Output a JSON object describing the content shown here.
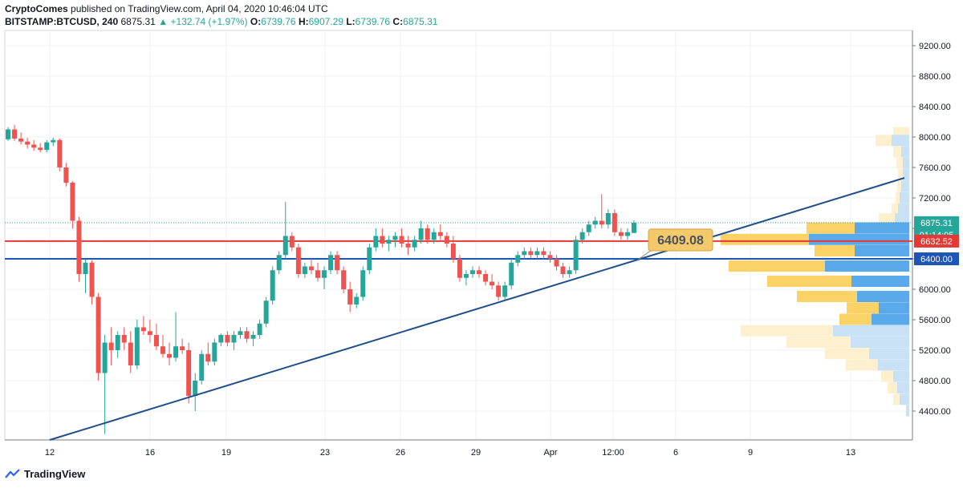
{
  "header": {
    "author": "CryptoComes",
    "published_text": "published on TradingView.com, April 04, 2020 10:46:04 UTC"
  },
  "symbol_row": {
    "symbol": "BITSTAMP:BTCUSD, 240",
    "last": "6875.31",
    "change": "+132.74 (+1.97%)",
    "o_label": "O:",
    "o": "6739.76",
    "h_label": "H:",
    "h": "6907.29",
    "l_label": "L:",
    "l": "6739.76",
    "c_label": "C:",
    "c": "6875.31"
  },
  "footer": {
    "brand": "TradingView"
  },
  "chart_data": {
    "type": "candlestick",
    "y_axis_ticks": [
      "9200.00",
      "8800.00",
      "8400.00",
      "8000.00",
      "7600.00",
      "7200.00",
      "6800.00",
      "6400.00",
      "6000.00",
      "5600.00",
      "5200.00",
      "4800.00",
      "4400.00"
    ],
    "y_axis_values": [
      9200,
      8800,
      8400,
      8000,
      7600,
      7200,
      6800,
      6400,
      6000,
      5600,
      5200,
      4800,
      4400
    ],
    "ylim": [
      4100,
      9400
    ],
    "x_axis_labels": [
      "12",
      "16",
      "19",
      "23",
      "26",
      "29",
      "Apr",
      "12:00",
      "6",
      "9",
      "13"
    ],
    "horizontal_lines": [
      {
        "value": 6632.52,
        "color": "#e53935",
        "label": "6632.52"
      },
      {
        "value": 6400.0,
        "color": "#1e56b8",
        "label": "6400.00"
      }
    ],
    "last_price": {
      "value": 6875.31,
      "label": "6875.31",
      "countdown": "01:14:05"
    },
    "trendline_label": "6409.08",
    "colors": {
      "up": "#26a69a",
      "down": "#ef5350",
      "trend": "#1e4f8c"
    },
    "candles": [
      [
        7970,
        8130,
        7950,
        8100
      ],
      [
        8100,
        8160,
        7950,
        7980
      ],
      [
        7980,
        8060,
        7900,
        7940
      ],
      [
        7940,
        7990,
        7850,
        7900
      ],
      [
        7900,
        7960,
        7820,
        7860
      ],
      [
        7860,
        7920,
        7800,
        7830
      ],
      [
        7830,
        7960,
        7800,
        7930
      ],
      [
        7930,
        7990,
        7880,
        7960
      ],
      [
        7960,
        7980,
        7550,
        7600
      ],
      [
        7600,
        7660,
        7350,
        7400
      ],
      [
        7400,
        7420,
        6800,
        6900
      ],
      [
        6900,
        6950,
        6100,
        6200
      ],
      [
        6200,
        6400,
        5950,
        6350
      ],
      [
        6350,
        6380,
        5800,
        5900
      ],
      [
        5900,
        5950,
        4800,
        4900
      ],
      [
        4900,
        5400,
        4100,
        5300
      ],
      [
        5300,
        5500,
        5000,
        5200
      ],
      [
        5200,
        5450,
        5100,
        5400
      ],
      [
        5400,
        5500,
        5200,
        5300
      ],
      [
        5300,
        5450,
        4900,
        5000
      ],
      [
        5000,
        5600,
        4950,
        5500
      ],
      [
        5500,
        5650,
        5400,
        5450
      ],
      [
        5450,
        5600,
        5300,
        5400
      ],
      [
        5400,
        5550,
        5200,
        5250
      ],
      [
        5250,
        5400,
        5100,
        5150
      ],
      [
        5150,
        5300,
        5000,
        5100
      ],
      [
        5100,
        5700,
        5050,
        5250
      ],
      [
        5250,
        5350,
        5150,
        5200
      ],
      [
        5200,
        5300,
        4500,
        4600
      ],
      [
        4600,
        4900,
        4400,
        4800
      ],
      [
        4800,
        5200,
        4750,
        5150
      ],
      [
        5150,
        5300,
        5000,
        5050
      ],
      [
        5050,
        5350,
        5000,
        5300
      ],
      [
        5300,
        5420,
        5250,
        5400
      ],
      [
        5400,
        5450,
        5250,
        5300
      ],
      [
        5300,
        5450,
        5200,
        5400
      ],
      [
        5400,
        5500,
        5350,
        5450
      ],
      [
        5450,
        5500,
        5300,
        5350
      ],
      [
        5350,
        5450,
        5250,
        5400
      ],
      [
        5400,
        5600,
        5350,
        5550
      ],
      [
        5550,
        5900,
        5500,
        5850
      ],
      [
        5850,
        6300,
        5800,
        6250
      ],
      [
        6250,
        6500,
        6200,
        6450
      ],
      [
        6450,
        7150,
        6400,
        6700
      ],
      [
        6700,
        6750,
        6500,
        6550
      ],
      [
        6550,
        6600,
        6150,
        6200
      ],
      [
        6200,
        6350,
        6150,
        6300
      ],
      [
        6300,
        6400,
        6200,
        6250
      ],
      [
        6250,
        6350,
        6100,
        6150
      ],
      [
        6150,
        6300,
        6000,
        6250
      ],
      [
        6250,
        6500,
        6200,
        6450
      ],
      [
        6450,
        6500,
        6200,
        6250
      ],
      [
        6250,
        6300,
        5950,
        6000
      ],
      [
        6000,
        6100,
        5700,
        5800
      ],
      [
        5800,
        5950,
        5750,
        5900
      ],
      [
        5900,
        6300,
        5850,
        6250
      ],
      [
        6250,
        6600,
        6200,
        6550
      ],
      [
        6550,
        6800,
        6500,
        6700
      ],
      [
        6700,
        6800,
        6550,
        6600
      ],
      [
        6600,
        6700,
        6500,
        6650
      ],
      [
        6650,
        6750,
        6550,
        6700
      ],
      [
        6700,
        6800,
        6550,
        6600
      ],
      [
        6600,
        6700,
        6450,
        6550
      ],
      [
        6550,
        6700,
        6500,
        6650
      ],
      [
        6650,
        6900,
        6600,
        6800
      ],
      [
        6800,
        6850,
        6600,
        6650
      ],
      [
        6650,
        6800,
        6600,
        6750
      ],
      [
        6750,
        6850,
        6650,
        6700
      ],
      [
        6700,
        6750,
        6550,
        6600
      ],
      [
        6600,
        6700,
        6350,
        6400
      ],
      [
        6400,
        6450,
        6100,
        6150
      ],
      [
        6150,
        6250,
        6050,
        6200
      ],
      [
        6200,
        6300,
        6150,
        6250
      ],
      [
        6250,
        6300,
        6150,
        6200
      ],
      [
        6200,
        6250,
        6050,
        6100
      ],
      [
        6100,
        6200,
        6000,
        6050
      ],
      [
        6050,
        6100,
        5850,
        5900
      ],
      [
        5900,
        6100,
        5850,
        6050
      ],
      [
        6050,
        6400,
        6000,
        6350
      ],
      [
        6350,
        6500,
        6300,
        6450
      ],
      [
        6450,
        6550,
        6400,
        6500
      ],
      [
        6500,
        6550,
        6400,
        6450
      ],
      [
        6450,
        6550,
        6400,
        6500
      ],
      [
        6500,
        6550,
        6400,
        6450
      ],
      [
        6450,
        6500,
        6350,
        6400
      ],
      [
        6400,
        6450,
        6250,
        6300
      ],
      [
        6300,
        6350,
        6150,
        6200
      ],
      [
        6200,
        6300,
        6150,
        6250
      ],
      [
        6250,
        6700,
        6200,
        6650
      ],
      [
        6650,
        6800,
        6600,
        6750
      ],
      [
        6750,
        6900,
        6700,
        6850
      ],
      [
        6850,
        6950,
        6800,
        6900
      ],
      [
        6900,
        7250,
        6800,
        6850
      ],
      [
        6850,
        7050,
        6800,
        7000
      ],
      [
        7000,
        7050,
        6700,
        6750
      ],
      [
        6750,
        6800,
        6650,
        6700
      ],
      [
        6700,
        6800,
        6650,
        6750
      ],
      [
        6740,
        6907,
        6740,
        6875
      ]
    ],
    "volume_profile": [
      {
        "price": 8050,
        "up": 20,
        "down": 0,
        "faded": true
      },
      {
        "price": 7950,
        "up": 20,
        "down": 22,
        "faded": true
      },
      {
        "price": 7800,
        "up": 10,
        "down": 10,
        "faded": true
      },
      {
        "price": 7650,
        "up": 8,
        "down": 8,
        "faded": true
      },
      {
        "price": 7500,
        "up": 6,
        "down": 8,
        "faded": true
      },
      {
        "price": 7350,
        "up": 5,
        "down": 10,
        "faded": true
      },
      {
        "price": 7200,
        "up": 5,
        "down": 12,
        "faded": true
      },
      {
        "price": 7050,
        "up": 8,
        "down": 14,
        "faded": true
      },
      {
        "price": 6920,
        "up": 20,
        "down": 18,
        "faded": true
      },
      {
        "price": 6800,
        "up": 60,
        "down": 68,
        "faded": false
      },
      {
        "price": 6650,
        "up": 110,
        "down": 125,
        "faded": false
      },
      {
        "price": 6500,
        "up": 50,
        "down": 68,
        "faded": false
      },
      {
        "price": 6300,
        "up": 120,
        "down": 105,
        "faded": false
      },
      {
        "price": 6100,
        "up": 105,
        "down": 72,
        "faded": false
      },
      {
        "price": 5900,
        "up": 75,
        "down": 65,
        "faded": false
      },
      {
        "price": 5750,
        "up": 40,
        "down": 38,
        "faded": false
      },
      {
        "price": 5600,
        "up": 40,
        "down": 47,
        "faded": false
      },
      {
        "price": 5450,
        "up": 115,
        "down": 95,
        "faded": true
      },
      {
        "price": 5300,
        "up": 80,
        "down": 73,
        "faded": true
      },
      {
        "price": 5150,
        "up": 55,
        "down": 50,
        "faded": true
      },
      {
        "price": 5000,
        "up": 40,
        "down": 39,
        "faded": true
      },
      {
        "price": 4850,
        "up": 15,
        "down": 20,
        "faded": true
      },
      {
        "price": 4700,
        "up": 12,
        "down": 15,
        "faded": true
      },
      {
        "price": 4550,
        "up": 8,
        "down": 12,
        "faded": true
      },
      {
        "price": 4400,
        "up": 0,
        "down": 4,
        "faded": true
      }
    ]
  }
}
